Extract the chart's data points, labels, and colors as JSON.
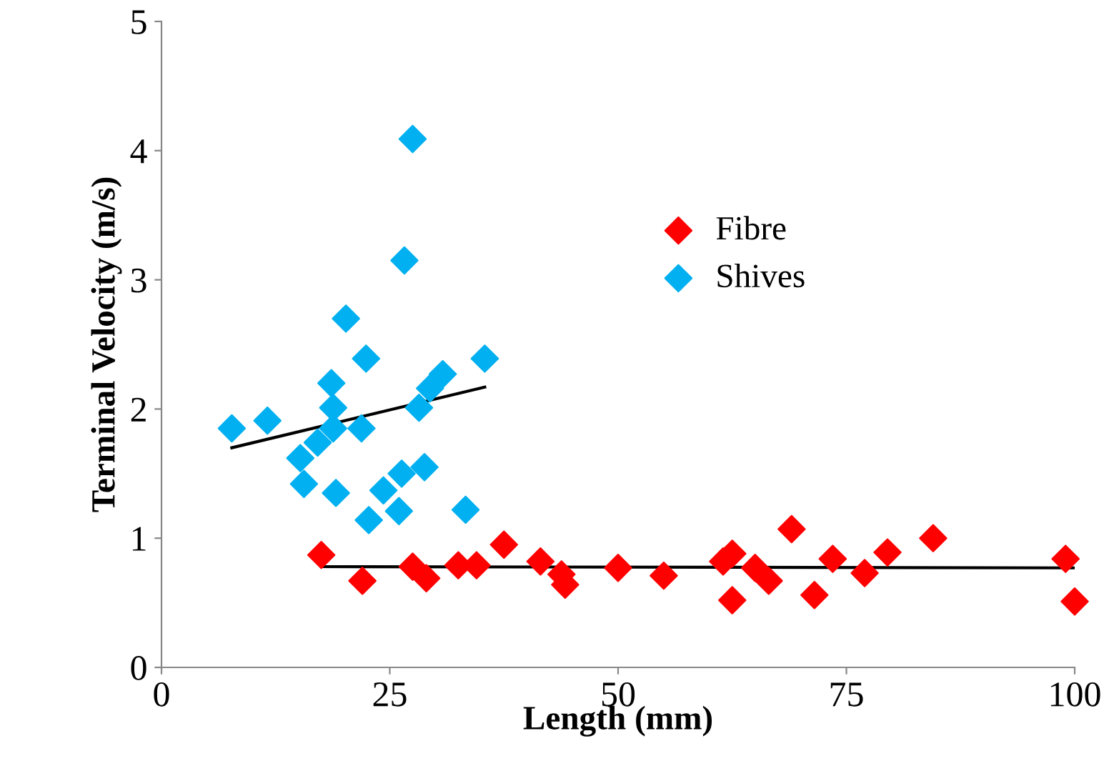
{
  "chart_data": {
    "type": "scatter",
    "xlabel": "Length (mm)",
    "ylabel": "Terminal Velocity (m/s)",
    "xlim": [
      0,
      100
    ],
    "ylim": [
      0,
      5
    ],
    "xticks": [
      0,
      25,
      50,
      75,
      100
    ],
    "yticks": [
      0,
      1,
      2,
      3,
      4,
      5
    ],
    "grid": false,
    "legend": "top right",
    "marker": "diamond",
    "series": [
      {
        "name": "Fibre",
        "color": "#ff0000",
        "x": [
          17.5,
          22,
          27.5,
          29,
          32.5,
          34.5,
          37.5,
          41.5,
          43.8,
          44.2,
          50,
          55,
          61.5,
          62.5,
          62.5,
          65,
          66.5,
          69,
          73.5,
          71.5,
          77,
          79.5,
          84.5,
          99,
          100
        ],
        "values": [
          0.87,
          0.67,
          0.78,
          0.69,
          0.79,
          0.79,
          0.95,
          0.82,
          0.72,
          0.64,
          0.77,
          0.71,
          0.82,
          0.88,
          0.52,
          0.77,
          0.67,
          1.07,
          0.84,
          0.56,
          0.73,
          0.89,
          1.0,
          0.84,
          0.51
        ]
      },
      {
        "name": "Shives",
        "color": "#00b0f0",
        "x": [
          7.7,
          11.6,
          15.2,
          15.6,
          17.1,
          18.6,
          18.8,
          18.8,
          19.1,
          20.2,
          21.9,
          22.4,
          22.7,
          24.3,
          26.3,
          26.6,
          26.0,
          27.5,
          28.2,
          28.8,
          29.4,
          30.8,
          33.3,
          35.4
        ],
        "values": [
          1.85,
          1.91,
          1.62,
          1.42,
          1.74,
          2.2,
          2.01,
          1.85,
          1.35,
          2.7,
          1.85,
          2.39,
          1.14,
          1.37,
          1.5,
          3.15,
          1.21,
          4.09,
          2.01,
          1.55,
          2.16,
          2.27,
          1.22,
          2.39
        ]
      },
      {
        "type": "line",
        "marker": "none",
        "color": "#000000",
        "x": [
          17.5,
          100
        ],
        "values": [
          0.78,
          0.77
        ]
      },
      {
        "type": "line",
        "marker": "none",
        "color": "#000000",
        "x": [
          7.7,
          35.4
        ],
        "values": [
          1.7,
          2.17
        ]
      }
    ]
  }
}
